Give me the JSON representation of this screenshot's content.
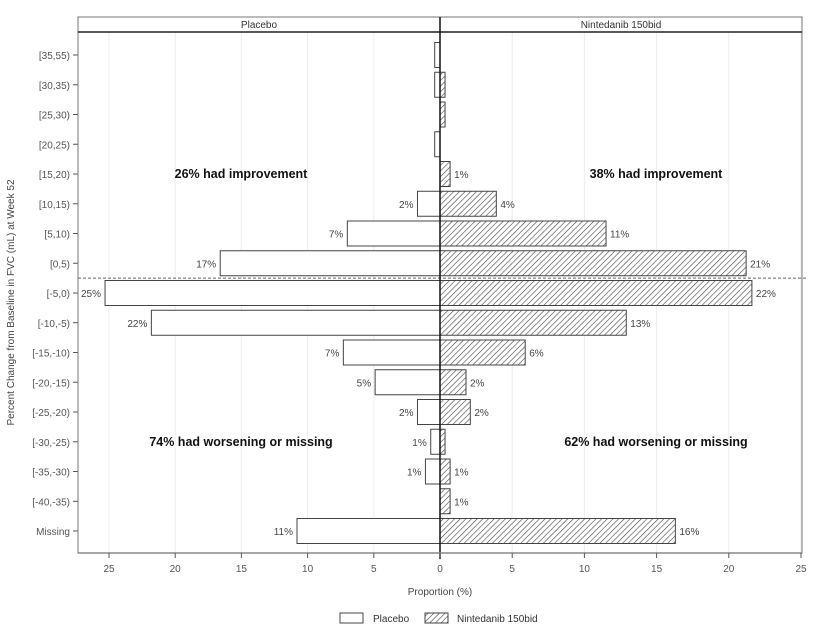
{
  "chart_data": {
    "type": "bar",
    "orientation": "horizontal-butterfly",
    "title": "",
    "panels": [
      "Placebo",
      "Nintedanib 150bid"
    ],
    "xlabel": "Proportion (%)",
    "ylabel": "Percent Change from Baseline in FVC (mL) at Week 52",
    "xlim": [
      0,
      25
    ],
    "xticks": [
      0,
      5,
      10,
      15,
      20,
      25
    ],
    "grid": true,
    "legend": {
      "position": "bottom",
      "entries": [
        "Placebo",
        "Nintedanib 150bid"
      ]
    },
    "categories": [
      "[35,55)",
      "[30,35)",
      "[25,30)",
      "[20,25)",
      "[15,20)",
      "[10,15)",
      "[5,10)",
      "[0,5)",
      "[-5,0)",
      "[-10,-5)",
      "[-15,-10)",
      "[-20,-15)",
      "[-25,-20)",
      "[-30,-25)",
      "[-35,-30)",
      "[-40,-35)",
      "Missing"
    ],
    "series": [
      {
        "name": "Placebo",
        "pattern": "open",
        "values": [
          0.4,
          0.4,
          0,
          0.4,
          0,
          1.7,
          7.0,
          16.6,
          25.3,
          21.8,
          7.3,
          4.9,
          1.7,
          0.7,
          1.1,
          0,
          10.8
        ],
        "labels": [
          "",
          "",
          "",
          "",
          "",
          "2%",
          "7%",
          "17%",
          "25%",
          "22%",
          "7%",
          "5%",
          "2%",
          "1%",
          "1%",
          "",
          "11%"
        ]
      },
      {
        "name": "Nintedanib 150bid",
        "pattern": "hatched",
        "values": [
          0,
          0.35,
          0.35,
          0,
          0.7,
          3.9,
          11.5,
          21.2,
          21.6,
          12.9,
          5.9,
          1.8,
          2.1,
          0.35,
          0.7,
          0.7,
          16.3
        ],
        "labels": [
          "",
          "",
          "",
          "",
          "1%",
          "4%",
          "11%",
          "21%",
          "22%",
          "13%",
          "6%",
          "2%",
          "2%",
          "",
          "1%",
          "1%",
          "16%"
        ]
      }
    ],
    "reference_line": {
      "between": [
        "[0,5)",
        "[-5,0)"
      ],
      "style": "dashed"
    },
    "annotations": [
      {
        "panel": "Placebo",
        "text": "26% had improvement",
        "region": "upper"
      },
      {
        "panel": "Nintedanib 150bid",
        "text": "38% had improvement",
        "region": "upper"
      },
      {
        "panel": "Placebo",
        "text": "74% had worsening or missing",
        "region": "lower"
      },
      {
        "panel": "Nintedanib 150bid",
        "text": "62% had worsening or missing",
        "region": "lower"
      }
    ]
  }
}
